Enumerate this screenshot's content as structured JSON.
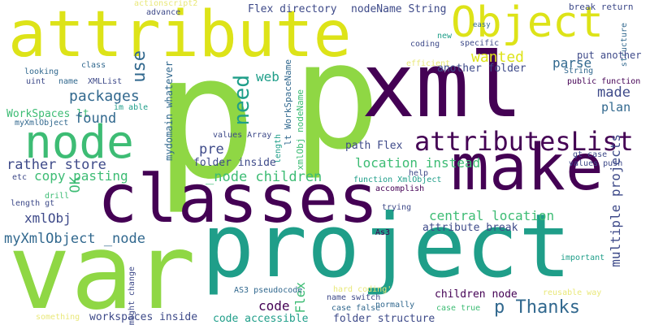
{
  "palette": {
    "yellow": "#dde318",
    "lime": "#8fd744",
    "green": "#3dbc74",
    "teal": "#1f9e89",
    "blue": "#31688e",
    "indigo": "#3e4a89",
    "purple": "#440154",
    "lightyellow": "#e9e87a",
    "lightgreen": "#a5d98e"
  },
  "words": [
    {
      "text": "p",
      "color": "lime"
    },
    {
      "text": "p",
      "color": "lime"
    },
    {
      "text": "attribute",
      "color": "yellow"
    },
    {
      "text": "Object",
      "color": "yellow"
    },
    {
      "text": "xml",
      "color": "purple"
    },
    {
      "text": "classes",
      "color": "purple"
    },
    {
      "text": "make",
      "color": "purple"
    },
    {
      "text": "project",
      "color": "teal"
    },
    {
      "text": "var",
      "color": "lime"
    },
    {
      "text": "node",
      "color": "green"
    },
    {
      "text": "attributesList",
      "color": "purple"
    },
    {
      "text": "Flex directory",
      "color": "indigo"
    },
    {
      "text": "nodeName String",
      "color": "indigo"
    },
    {
      "text": "break return",
      "color": "indigo"
    },
    {
      "text": "actionscript2",
      "color": "lightyellow"
    },
    {
      "text": "advance",
      "color": "indigo"
    },
    {
      "text": "easy",
      "color": "blue"
    },
    {
      "text": "coding",
      "color": "indigo"
    },
    {
      "text": "new",
      "color": "teal"
    },
    {
      "text": "specific",
      "color": "indigo"
    },
    {
      "text": "structure",
      "color": "blue"
    },
    {
      "text": "parse",
      "color": "blue"
    },
    {
      "text": "put another",
      "color": "indigo"
    },
    {
      "text": "wanted",
      "color": "yellow"
    },
    {
      "text": "another folder",
      "color": "indigo"
    },
    {
      "text": "made",
      "color": "indigo"
    },
    {
      "text": "efficient",
      "color": "lightyellow"
    },
    {
      "text": "String",
      "color": "blue"
    },
    {
      "text": "public function",
      "color": "purple"
    },
    {
      "text": "use",
      "color": "blue"
    },
    {
      "text": "need",
      "color": "teal"
    },
    {
      "text": "web",
      "color": "teal"
    },
    {
      "text": "class",
      "color": "blue"
    },
    {
      "text": "looking",
      "color": "blue"
    },
    {
      "text": "uint",
      "color": "indigo"
    },
    {
      "text": "name",
      "color": "blue"
    },
    {
      "text": "XMLList",
      "color": "indigo"
    },
    {
      "text": "packages",
      "color": "blue"
    },
    {
      "text": "WorkSpaces lt",
      "color": "green"
    },
    {
      "text": "im able",
      "color": "teal"
    },
    {
      "text": "myXmlObject",
      "color": "blue"
    },
    {
      "text": "mydomain whatever",
      "color": "blue"
    },
    {
      "text": "lt WorkSpaceName",
      "color": "blue"
    },
    {
      "text": "xmlObj nodeName",
      "color": "green"
    },
    {
      "text": "plan",
      "color": "blue"
    },
    {
      "text": "found",
      "color": "blue"
    },
    {
      "text": "pre",
      "color": "indigo"
    },
    {
      "text": "values Array",
      "color": "indigo"
    },
    {
      "text": "length",
      "color": "teal"
    },
    {
      "text": "path Flex",
      "color": "indigo"
    },
    {
      "text": "location instead",
      "color": "green"
    },
    {
      "text": "rather store",
      "color": "indigo"
    },
    {
      "text": "folder inside",
      "color": "indigo"
    },
    {
      "text": "gt case",
      "color": "indigo"
    },
    {
      "text": "values push",
      "color": "indigo"
    },
    {
      "text": "copy pasting",
      "color": "green"
    },
    {
      "text": "_node children",
      "color": "green"
    },
    {
      "text": "etc",
      "color": "indigo"
    },
    {
      "text": "OK",
      "color": "green"
    },
    {
      "text": "function XmlObject",
      "color": "teal"
    },
    {
      "text": "help",
      "color": "indigo"
    },
    {
      "text": "accomplish",
      "color": "purple"
    },
    {
      "text": "drill",
      "color": "green"
    },
    {
      "text": "length gt",
      "color": "indigo"
    },
    {
      "text": "trying",
      "color": "indigo"
    },
    {
      "text": "xmlObj",
      "color": "indigo"
    },
    {
      "text": "central location",
      "color": "green"
    },
    {
      "text": "multiple projects",
      "color": "indigo"
    },
    {
      "text": "myXmlObject _node",
      "color": "blue"
    },
    {
      "text": "attribute break",
      "color": "indigo"
    },
    {
      "text": "As3",
      "color": "purple"
    },
    {
      "text": "important",
      "color": "teal"
    },
    {
      "text": "code",
      "color": "purple"
    },
    {
      "text": "Flex",
      "color": "green"
    },
    {
      "text": "AS3 pseudocode",
      "color": "blue"
    },
    {
      "text": "name switch",
      "color": "indigo"
    },
    {
      "text": "hard coding'",
      "color": "lightyellow"
    },
    {
      "text": "normally",
      "color": "blue"
    },
    {
      "text": "children node",
      "color": "purple"
    },
    {
      "text": "might change",
      "color": "indigo"
    },
    {
      "text": "p Thanks",
      "color": "blue"
    },
    {
      "text": "reusable way",
      "color": "lightyellow"
    },
    {
      "text": "case false",
      "color": "blue"
    },
    {
      "text": "case true",
      "color": "green"
    },
    {
      "text": "workspaces inside",
      "color": "indigo"
    },
    {
      "text": "code accessible",
      "color": "teal"
    },
    {
      "text": "folder structure",
      "color": "indigo"
    },
    {
      "text": "something",
      "color": "lightyellow"
    }
  ]
}
